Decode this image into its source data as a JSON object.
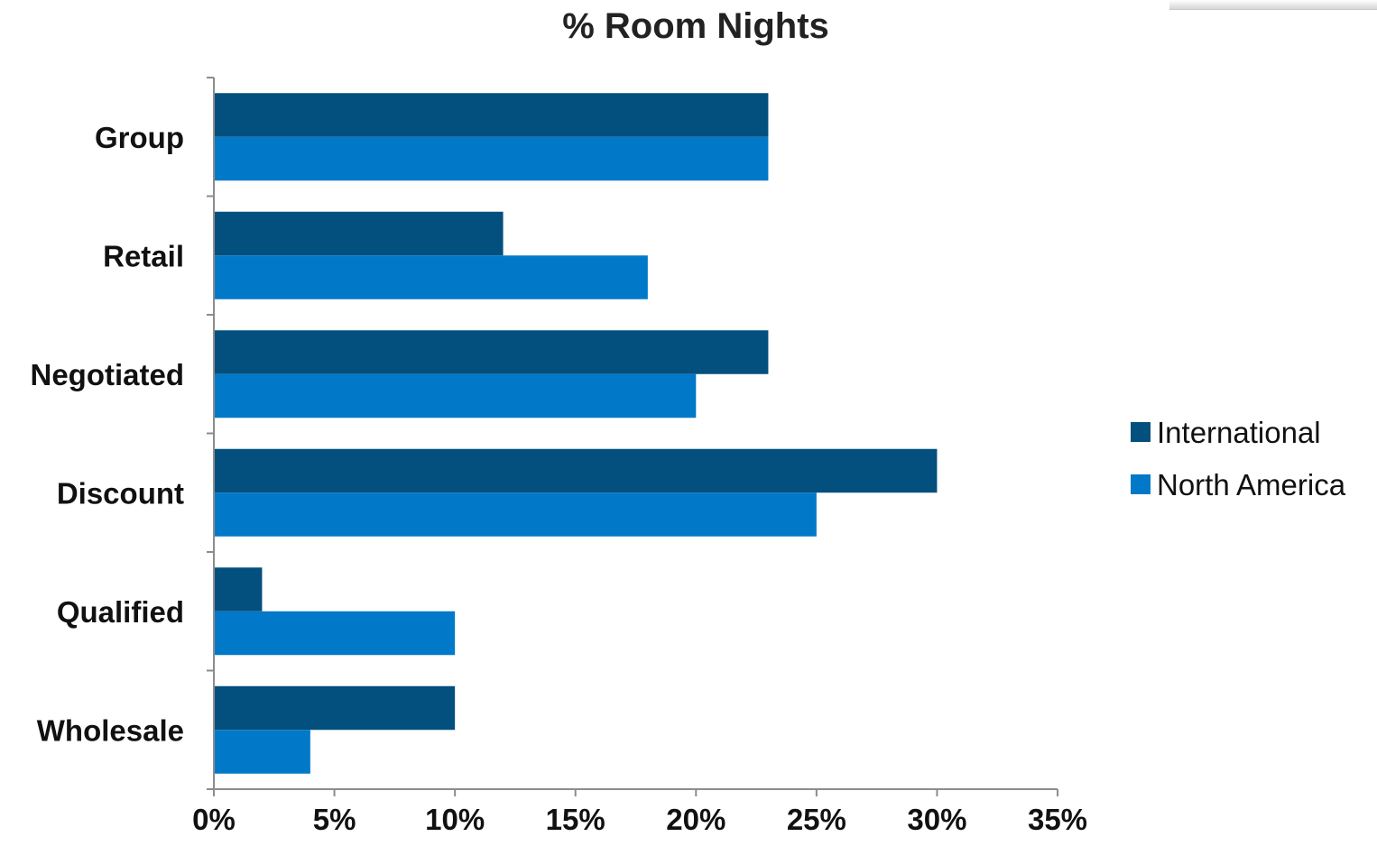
{
  "chart_data": {
    "type": "bar",
    "orientation": "horizontal",
    "title": "% Room Nights",
    "categories": [
      "Group",
      "Retail",
      "Negotiated",
      "Discount",
      "Qualified",
      "Wholesale"
    ],
    "series": [
      {
        "name": "International",
        "color": "#034f7d",
        "values": [
          23,
          12,
          23,
          30,
          2,
          10
        ]
      },
      {
        "name": "North America",
        "color": "#0279c8",
        "values": [
          23,
          18,
          20,
          25,
          10,
          4
        ]
      }
    ],
    "xlim": [
      0,
      35
    ],
    "x_ticks": [
      0,
      5,
      10,
      15,
      20,
      25,
      30,
      35
    ],
    "x_tick_labels": [
      "0%",
      "5%",
      "10%",
      "15%",
      "20%",
      "25%",
      "30%",
      "35%"
    ],
    "xlabel": "",
    "ylabel": "",
    "grid": false,
    "legend_position": "right"
  }
}
